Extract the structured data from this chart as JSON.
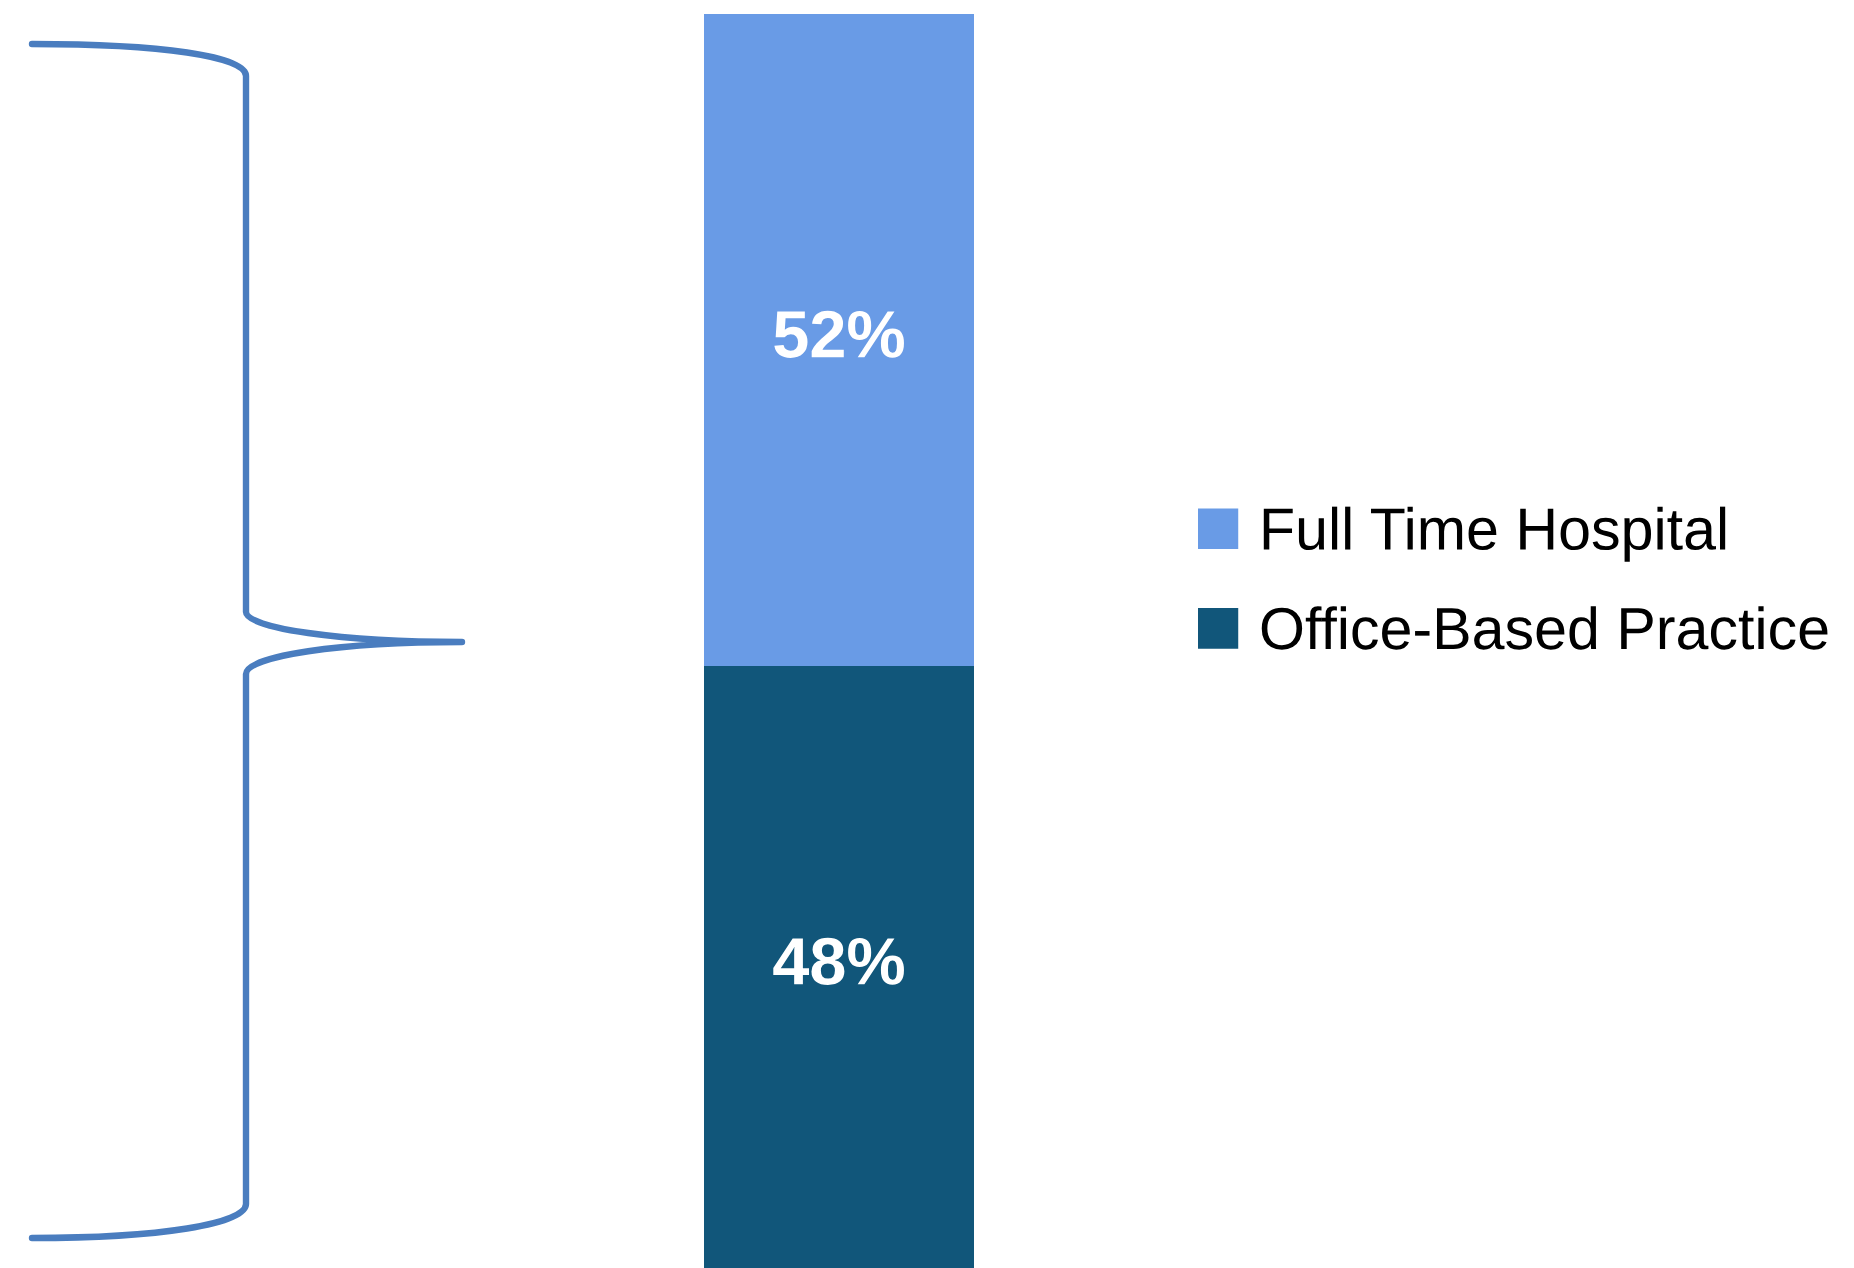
{
  "chart_data": {
    "type": "bar",
    "stacked": true,
    "categories": [
      null
    ],
    "series": [
      {
        "name": "Office-Based Practice",
        "color": "#11567a",
        "values": [
          48
        ],
        "value_labels": [
          "48%"
        ]
      },
      {
        "name": "Full Time Hospital",
        "color": "#699be6",
        "values": [
          52
        ],
        "value_labels": [
          "52%"
        ]
      }
    ],
    "legend": "right"
  }
}
